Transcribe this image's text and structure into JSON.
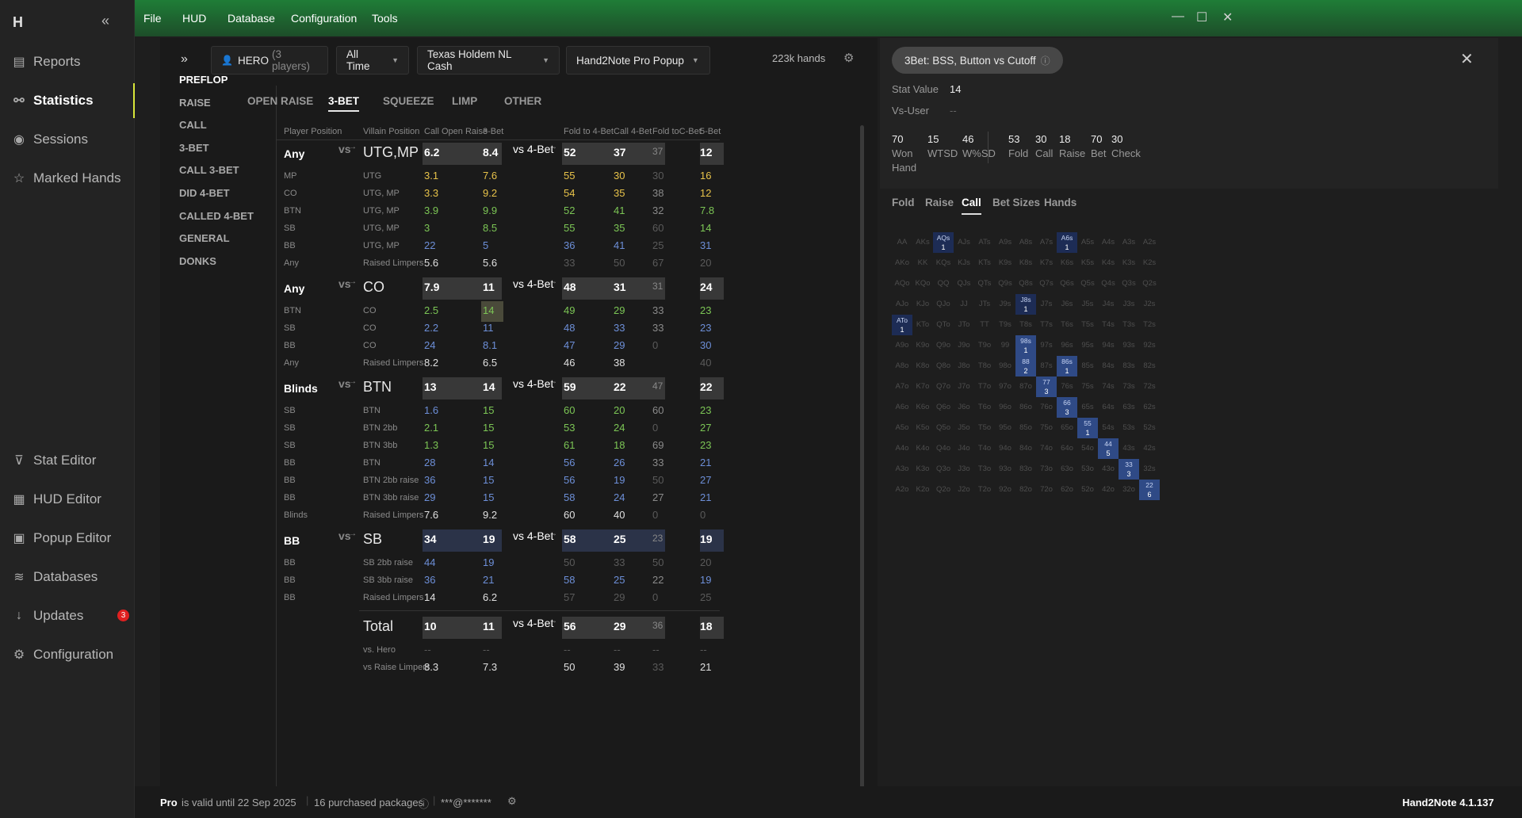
{
  "app": {
    "logo": "H",
    "version": "Hand2Note 4.1.137"
  },
  "menu": [
    "File",
    "HUD",
    "Database",
    "Configuration",
    "Tools"
  ],
  "sidebar": {
    "items": [
      {
        "label": "Reports",
        "icon": "report-icon"
      },
      {
        "label": "Statistics",
        "icon": "statistics-icon"
      },
      {
        "label": "Sessions",
        "icon": "sessions-icon"
      },
      {
        "label": "Marked Hands",
        "icon": "star-icon"
      },
      {
        "label": "Stat Editor",
        "icon": "filter-icon"
      },
      {
        "label": "HUD Editor",
        "icon": "hud-icon"
      },
      {
        "label": "Popup Editor",
        "icon": "popup-icon"
      },
      {
        "label": "Databases",
        "icon": "database-icon"
      },
      {
        "label": "Updates",
        "icon": "download-icon",
        "badge": "3"
      },
      {
        "label": "Configuration",
        "icon": "gear-icon"
      }
    ]
  },
  "toolbar": {
    "player": "HERO",
    "player_count": "(3 players)",
    "period": "All Time",
    "game": "Texas Holdem NL Cash",
    "popup": "Hand2Note Pro Popup",
    "hands": "223k hands"
  },
  "leftnav": [
    "PREFLOP",
    "RAISE",
    "CALL",
    "3-BET",
    "CALL 3-BET",
    "DID 4-BET",
    "CALLED 4-BET",
    "GENERAL",
    "DONKS"
  ],
  "tabs": [
    "OPEN RAISE",
    "3-BET",
    "SQUEEZE",
    "LIMP",
    "OTHER"
  ],
  "headers": {
    "pos": "Player Position",
    "vil": "Villain Position",
    "call": "Call Open Raise",
    "threebet": "3-Bet",
    "f4": "Fold to 4-Bet",
    "c4": "Call 4-Bet",
    "fcb": "Fold toC-Bet",
    "fb": "5-Bet"
  },
  "vs": "vs",
  "vs4": "vs 4-Bet",
  "rows": [
    {
      "t": "big",
      "pos": "Any",
      "vil": "UTG,MP",
      "call": "6.2",
      "tb": "8.4",
      "f4": "52",
      "c4": "37",
      "fcb": "37",
      "fb": "12"
    },
    {
      "pos": "MP",
      "vil": "UTG",
      "call": "3.1",
      "cc": "y",
      "tb": "7.6",
      "tc": "y",
      "f4": "55",
      "fc": "y",
      "c4": "30",
      "c4c": "y",
      "fcb": "30",
      "fcbc": "dim",
      "fcbs": "3",
      "fb": "16",
      "fbc": "y"
    },
    {
      "pos": "CO",
      "vil": "UTG, MP",
      "call": "3.3",
      "cc": "y",
      "tb": "9.2",
      "tc": "y",
      "f4": "54",
      "fc": "y",
      "c4": "35",
      "c4c": "y",
      "fcb": "38",
      "fcbc": "gr",
      "fb": "12",
      "fbc": "y"
    },
    {
      "pos": "BTN",
      "vil": "UTG, MP",
      "call": "3.9",
      "cc": "g",
      "tb": "9.9",
      "tc": "g",
      "f4": "52",
      "fc": "g",
      "c4": "41",
      "c4c": "g",
      "fcb": "32",
      "fcbc": "gr",
      "fb": "7.8",
      "fbc": "g"
    },
    {
      "pos": "SB",
      "vil": "UTG, MP",
      "call": "3",
      "cc": "g",
      "tb": "8.5",
      "tc": "g",
      "f4": "55",
      "fc": "g",
      "c4": "35",
      "c4c": "g",
      "fcb": "60",
      "fcbc": "dim",
      "fcbs": "5",
      "fb": "14",
      "fbc": "g"
    },
    {
      "pos": "BB",
      "vil": "UTG, MP",
      "call": "22",
      "cc": "b",
      "tb": "5",
      "tc": "b",
      "f4": "36",
      "fc": "b",
      "c4": "41",
      "c4c": "b",
      "fcb": "25",
      "fcbc": "dim",
      "fcbs": "4",
      "fb": "31",
      "fbc": "b"
    },
    {
      "pos": "Any",
      "vil": "Raised Limpers",
      "call": "5.6",
      "cc": "w",
      "tb": "5.6",
      "tc": "w",
      "f4": "33",
      "fc": "dim",
      "f4s": "3",
      "c4": "50",
      "c4c": "dim",
      "c4s": "2",
      "fcb": "67",
      "fcbc": "dim",
      "fcbs": "3",
      "fb": "20",
      "fbc": "dim",
      "fbs": "5"
    },
    {
      "t": "big",
      "pos": "Any",
      "vil": "CO",
      "call": "7.9",
      "tb": "11",
      "f4": "48",
      "c4": "31",
      "fcb": "31",
      "fb": "24"
    },
    {
      "pos": "BTN",
      "vil": "CO",
      "call": "2.5",
      "cc": "g",
      "tb": "14",
      "tc": "g",
      "hl": true,
      "f4": "49",
      "fc": "g",
      "c4": "29",
      "c4c": "g",
      "fcb": "33",
      "fcbc": "gr",
      "fb": "23",
      "fbc": "g"
    },
    {
      "pos": "SB",
      "vil": "CO",
      "call": "2.2",
      "cc": "b",
      "tb": "11",
      "tc": "b",
      "f4": "48",
      "fc": "b",
      "c4": "33",
      "c4c": "b",
      "fcb": "33",
      "fcbc": "gr",
      "fb": "23",
      "fbc": "b"
    },
    {
      "pos": "BB",
      "vil": "CO",
      "call": "24",
      "cc": "b",
      "tb": "8.1",
      "tc": "b",
      "f4": "47",
      "fc": "b",
      "c4": "29",
      "c4c": "b",
      "fcb": "0",
      "fcbc": "dim",
      "fcbs": "1",
      "fb": "30",
      "fbc": "b"
    },
    {
      "pos": "Any",
      "vil": "Raised Limpers",
      "call": "8.2",
      "cc": "w",
      "tb": "6.5",
      "tc": "w",
      "f4": "46",
      "fc": "w",
      "f4s": "13",
      "c4": "38",
      "c4c": "w",
      "c4s": "13",
      "fcb": "",
      "fb": "40",
      "fbc": "dim",
      "fbs": "5"
    },
    {
      "t": "big",
      "pos": "Blinds",
      "vil": "BTN",
      "call": "13",
      "tb": "14",
      "f4": "59",
      "c4": "22",
      "fcb": "47",
      "fb": "22"
    },
    {
      "pos": "SB",
      "vil": "BTN",
      "call": "1.6",
      "cc": "b",
      "tb": "15",
      "tc": "g",
      "f4": "60",
      "fc": "g",
      "c4": "20",
      "c4c": "g",
      "fcb": "60",
      "fcbc": "gr",
      "fb": "23",
      "fbc": "g"
    },
    {
      "pos": "SB",
      "vil": "BTN 2bb",
      "call": "2.1",
      "cc": "g",
      "tb": "15",
      "tc": "g",
      "f4": "53",
      "fc": "g",
      "c4": "24",
      "c4c": "g",
      "fcb": "0",
      "fcbc": "dim",
      "fcbs": "2",
      "fb": "27",
      "fbc": "g"
    },
    {
      "pos": "SB",
      "vil": "BTN 3bb",
      "call": "1.3",
      "cc": "g",
      "tb": "15",
      "tc": "g",
      "f4": "61",
      "fc": "g",
      "c4": "18",
      "c4c": "g",
      "fcb": "69",
      "fcbc": "gr",
      "fcbs": "13",
      "fb": "23",
      "fbc": "g"
    },
    {
      "pos": "BB",
      "vil": "BTN",
      "call": "28",
      "cc": "b",
      "tb": "14",
      "tc": "b",
      "f4": "56",
      "fc": "b",
      "c4": "26",
      "c4c": "b",
      "fcb": "33",
      "fcbc": "gr",
      "fb": "21",
      "fbc": "b"
    },
    {
      "pos": "BB",
      "vil": "BTN 2bb raise",
      "call": "36",
      "cc": "b",
      "tb": "15",
      "tc": "b",
      "f4": "56",
      "fc": "b",
      "c4": "19",
      "c4c": "b",
      "fcb": "50",
      "fcbc": "dim",
      "fcbs": "2",
      "fb": "27",
      "fbc": "b"
    },
    {
      "pos": "BB",
      "vil": "BTN 3bb raise",
      "call": "29",
      "cc": "b",
      "tb": "15",
      "tc": "b",
      "f4": "58",
      "fc": "b",
      "c4": "24",
      "c4c": "b",
      "fcb": "27",
      "fcbc": "gr",
      "fcbs": "11",
      "fb": "21",
      "fbc": "b"
    },
    {
      "pos": "Blinds",
      "vil": "Raised Limpers",
      "call": "7.6",
      "cc": "w",
      "tb": "9.2",
      "tc": "w",
      "f4": "60",
      "fc": "w",
      "f4s": "10",
      "c4": "40",
      "c4c": "w",
      "c4s": "10",
      "fcb": "0",
      "fcbc": "dim",
      "fcbs": "1",
      "fb": "0",
      "fbc": "dim",
      "fbs": "5"
    },
    {
      "t": "big",
      "bl": true,
      "pos": "BB",
      "vil": "SB",
      "call": "34",
      "tb": "19",
      "f4": "58",
      "c4": "25",
      "fcb": "23",
      "fb": "19"
    },
    {
      "pos": "BB",
      "vil": "SB 2bb raise",
      "call": "44",
      "cc": "b",
      "tb": "19",
      "tc": "b",
      "f4": "50",
      "fc": "dim",
      "f4s": "6",
      "c4": "33",
      "c4c": "dim",
      "c4s": "6",
      "fcb": "50",
      "fcbc": "dim",
      "fcbs": "2",
      "fb": "20",
      "fbc": "dim",
      "fbs": "5"
    },
    {
      "pos": "BB",
      "vil": "SB 3bb raise",
      "call": "36",
      "cc": "b",
      "tb": "21",
      "tc": "b",
      "f4": "58",
      "fc": "b",
      "c4": "25",
      "c4c": "b",
      "fcb": "22",
      "fcbc": "gr",
      "fb": "19",
      "fbc": "b"
    },
    {
      "pos": "BB",
      "vil": "Raised Limpers",
      "call": "14",
      "cc": "w",
      "tb": "6.2",
      "tc": "w",
      "f4": "57",
      "fc": "dim",
      "f4s": "7",
      "c4": "29",
      "c4c": "dim",
      "c4s": "7",
      "fcb": "0",
      "fcbc": "dim",
      "fcbs": "1",
      "fb": "25",
      "fbc": "dim",
      "fbs": "4"
    },
    {
      "t": "total",
      "pos": "",
      "vil": "Total",
      "call": "10",
      "tb": "11",
      "f4": "56",
      "c4": "29",
      "fcb": "36",
      "fb": "18"
    },
    {
      "pos": "",
      "vil": "vs. Hero",
      "call": "--",
      "cc": "dim",
      "tb": "--",
      "tc": "dim",
      "f4": "--",
      "fc": "dim",
      "c4": "--",
      "c4c": "dim",
      "fcb": "--",
      "fcbc": "dim",
      "fb": "--",
      "fbc": "dim"
    },
    {
      "pos": "",
      "vil": "vs Raise Limpers",
      "call": "8.3",
      "cc": "w",
      "tb": "7.3",
      "tc": "w",
      "f4": "50",
      "fc": "w",
      "c4": "39",
      "c4c": "w",
      "fcb": "33",
      "fcbc": "dim",
      "fcbs": "6",
      "fb": "21",
      "fbc": "w"
    }
  ],
  "right": {
    "chip": "3Bet: BSS, Button vs Cutoff",
    "stat_value_label": "Stat Value",
    "stat_value": "14",
    "vs_user_label": "Vs-User",
    "vs_user": "--",
    "stats": [
      {
        "v": "70",
        "l": "Won Hand"
      },
      {
        "v": "15",
        "l": "WTSD"
      },
      {
        "v": "46",
        "l": "W%SD"
      },
      {
        "v": "53",
        "l": "Fold"
      },
      {
        "v": "30",
        "l": "Call"
      },
      {
        "v": "18",
        "l": "Raise"
      },
      {
        "v": "70",
        "l": "Bet"
      },
      {
        "v": "30",
        "l": "Check"
      }
    ],
    "tabs": [
      "Fold",
      "Raise",
      "Call",
      "Bet Sizes",
      "Hands"
    ]
  },
  "grid_on": {
    "AQs": "1",
    "A6s": "1",
    "J8s": "1",
    "ATo": "1",
    "98s": "1",
    "88": "2",
    "86s": "1",
    "77": "3",
    "66": "3",
    "55": "1",
    "44": "5",
    "33": "3",
    "22": "6"
  },
  "footer": {
    "plan": "Pro",
    "valid": "is valid until 22 Sep 2025",
    "packages": "16 purchased packages",
    "account": "***@*******"
  }
}
